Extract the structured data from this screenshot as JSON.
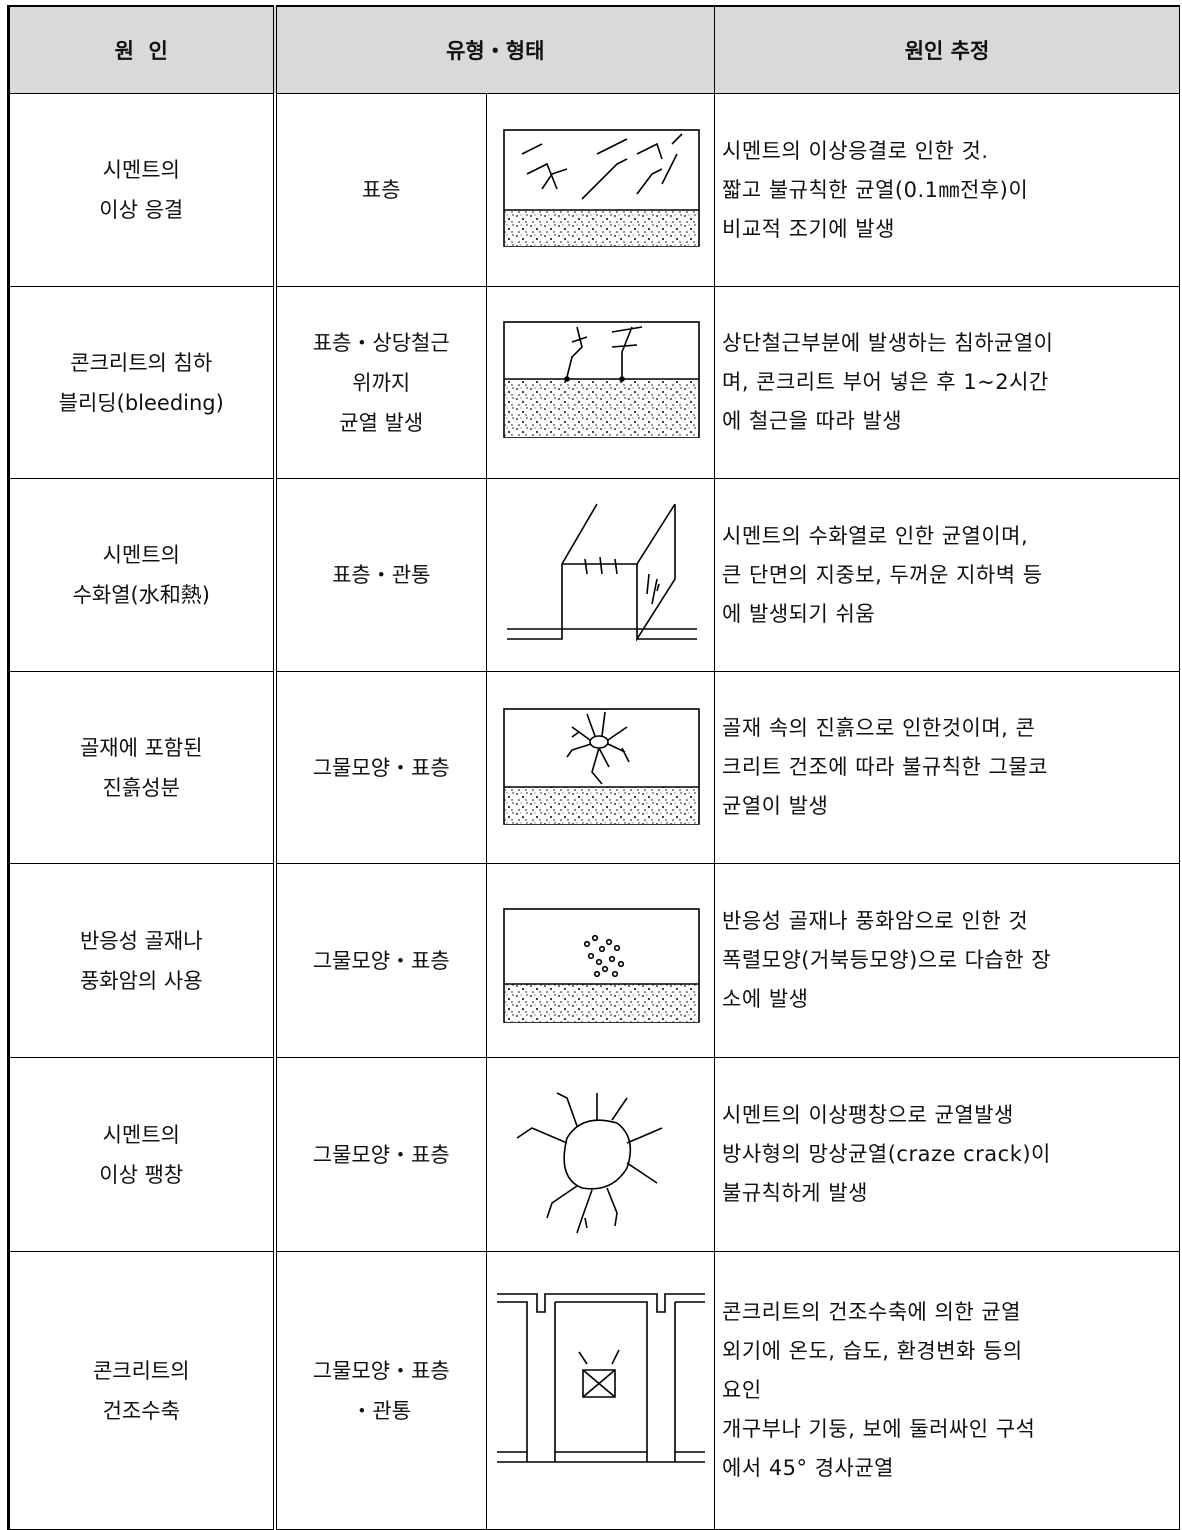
{
  "table": {
    "header": [
      "원  인",
      "유형・형태",
      "원인 추정"
    ],
    "rows": [
      {
        "cause": [
          "시멘트의",
          "이상 응결"
        ],
        "type": [
          "표층"
        ],
        "estimate": [
          "시멘트의 이상응결로 인한 것.",
          "짧고 불규칙한 균열(0.1㎜전후)이",
          "비교적 조기에 발생"
        ]
      },
      {
        "cause": [
          "콘크리트의 침하",
          "블리딩(bleeding)"
        ],
        "type": [
          "표층・상당철근",
          "위까지",
          "균열 발생"
        ],
        "estimate": [
          "상단철근부분에 발생하는 침하균열이",
          "며, 콘크리트 부어 넣은 후 1~2시간",
          "에 철근을 따라 발생"
        ]
      },
      {
        "cause": [
          "시멘트의",
          "수화열(水和熱)"
        ],
        "type": [
          "표층・관통"
        ],
        "estimate": [
          "시멘트의 수화열로 인한 균열이며,",
          "큰 단면의 지중보, 두꺼운 지하벽 등",
          "에 발생되기 쉬움"
        ]
      },
      {
        "cause": [
          "골재에 포함된",
          "진흙성분"
        ],
        "type": [
          "그물모양・표층"
        ],
        "estimate": [
          "골재 속의 진흙으로 인한것이며, 콘",
          "크리트 건조에 따라 불규칙한 그물코",
          "균열이 발생"
        ]
      },
      {
        "cause": [
          "반응성 골재나",
          "풍화암의 사용"
        ],
        "type": [
          "그물모양・표층"
        ],
        "estimate": [
          "반응성 골재나 풍화암으로 인한 것",
          "폭렬모양(거북등모양)으로 다습한 장",
          "소에 발생"
        ]
      },
      {
        "cause": [
          "시멘트의",
          "이상 팽창"
        ],
        "type": [
          "그물모양・표층"
        ],
        "estimate": [
          "시멘트의 이상팽창으로 균열발생",
          "방사형의 망상균열(craze crack)이",
          "불규칙하게 발생"
        ]
      },
      {
        "cause": [
          "콘크리트의",
          "건조수축"
        ],
        "type": [
          "그물모양・표층",
          "・관통"
        ],
        "estimate": [
          "콘크리트의 건조수축에 의한 균열",
          "외기에 온도, 습도, 환경변화 등의",
          "요인",
          "개구부나 기둥, 보에 둘러싸인 구석",
          "에서 45° 경사균열"
        ]
      }
    ]
  }
}
